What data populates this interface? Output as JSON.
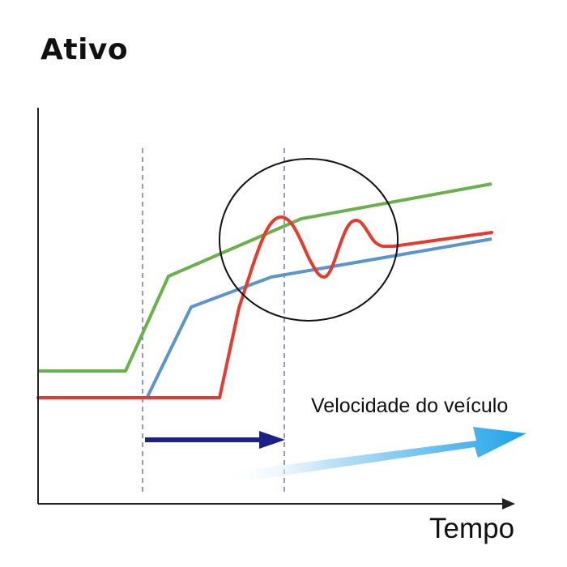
{
  "title": "Ativo",
  "labels": {
    "x_axis": "Tempo",
    "arrow": "Velocidade do veículo"
  },
  "colors": {
    "green_line": "#6ab04c",
    "blue_line": "#5b95cc",
    "red_line": "#e53a2c",
    "time_arrow": "#1c2283",
    "speed_arrow": "#1ea2e8",
    "axis": "#222222",
    "dashed_guide": "#2a2f8a"
  }
}
